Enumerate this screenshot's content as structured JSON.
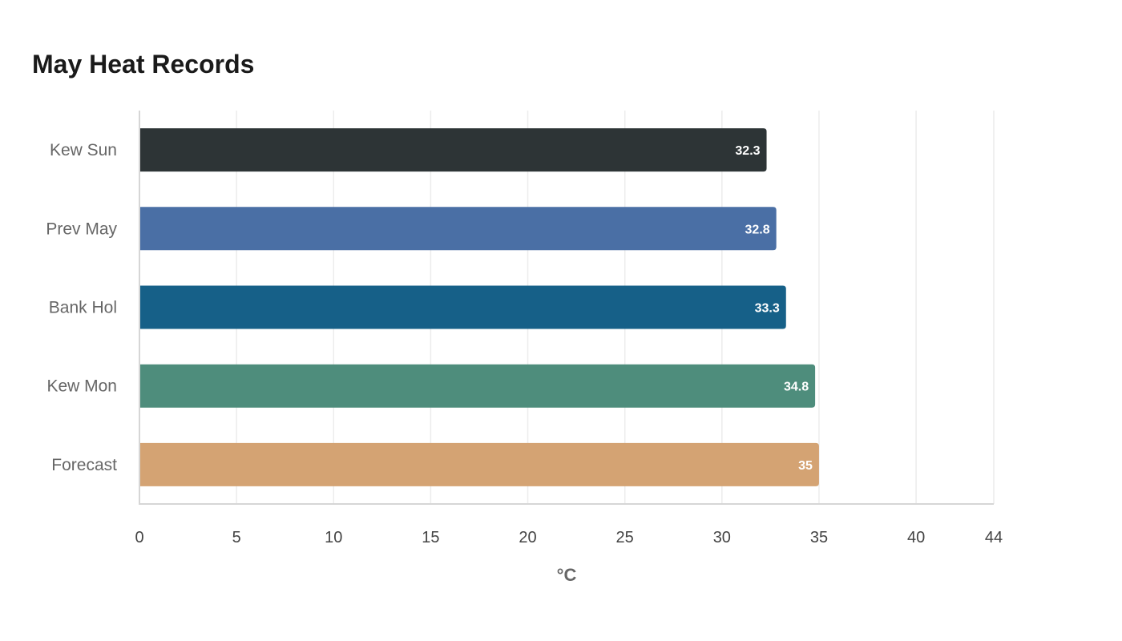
{
  "chart_data": {
    "type": "bar",
    "orientation": "horizontal",
    "title": "May Heat Records",
    "xlabel": "°C",
    "ylabel": "",
    "categories": [
      "Kew Sun",
      "Prev May",
      "Bank Hol",
      "Kew Mon",
      "Forecast"
    ],
    "values": [
      32.3,
      32.8,
      33.3,
      34.8,
      35.0
    ],
    "colors": [
      "#2d3436",
      "#4a6fa5",
      "#166088",
      "#4e8d7c",
      "#d4a373"
    ],
    "xlim": [
      0,
      44
    ],
    "xticks": [
      "0",
      "5",
      "10",
      "15",
      "20",
      "25",
      "30",
      "35",
      "40",
      "44"
    ],
    "grid": true,
    "legend": "none"
  }
}
